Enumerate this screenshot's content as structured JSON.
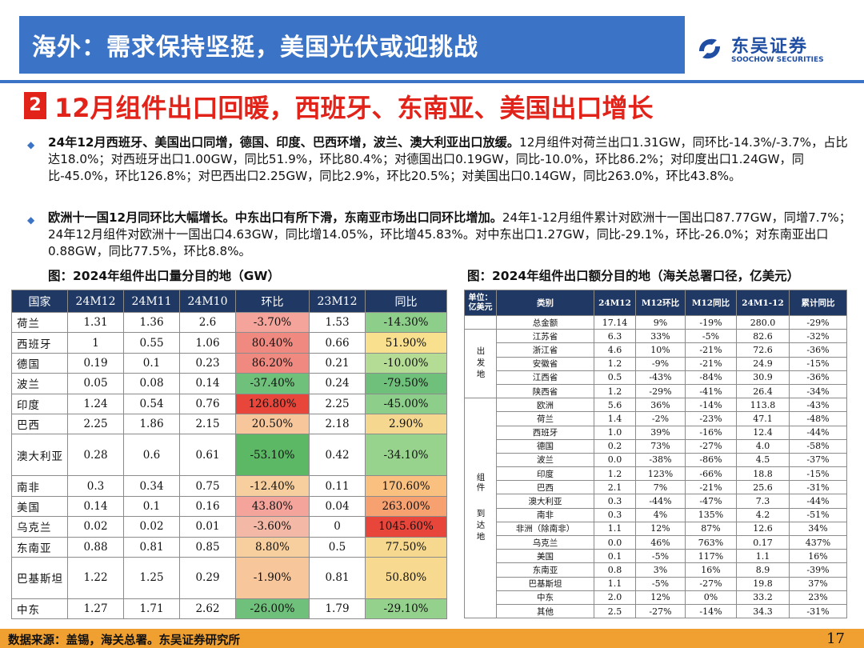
{
  "header": {
    "title": "海外：需求保持坚挺，美国光伏或迎挑战",
    "logo_cn": "东吴证券",
    "logo_en": "SOOCHOW SECURITIES"
  },
  "section": {
    "number": "2",
    "title": "12月组件出口回暖，西班牙、东南亚、美国出口增长"
  },
  "bullets": [
    {
      "bold": "24年12月西班牙、美国出口同增，德国、印度、巴西环增，波兰、澳大利亚出口放缓。",
      "text": "12月组件对荷兰出口1.31GW，同环比-14.3%/-3.7%，占比达18.0%；对西班牙出口1.00GW，同比51.9%，环比80.4%；对德国出口0.19GW，同比-10.0%，环比86.2%；对印度出口1.24GW，同比-45.0%，环比126.8%；对巴西出口2.25GW，同比2.9%，环比20.5%；对美国出口0.14GW，同比263.0%，环比43.8%。"
    },
    {
      "bold": "欧洲十一国12月同环比大幅增长。中东出口有所下滑，东南亚市场出口同环比增加。",
      "text": "24年1-12月组件累计对欧洲十一国出口87.77GW，同增7.7%；24年12月组件对欧洲十一国出口4.63GW，同比增14.05%，环比增45.83%。对中东出口1.27GW，同比-29.1%，环比-26.0%；对东南亚出口0.88GW，同比77.5%，环比8.8%。"
    }
  ],
  "left_caption": "图：2024年组件出口量分目的地（GW）",
  "right_caption": "图：2024年组件出口额分目的地（海关总署口径，亿美元）",
  "left_table": {
    "headers": [
      "国家",
      "24M12",
      "24M11",
      "24M10",
      "环比",
      "23M12",
      "同比"
    ],
    "rows": [
      [
        "荷兰",
        "1.31",
        "1.36",
        "2.6",
        "-3.70%",
        "1.53",
        "-14.30%"
      ],
      [
        "西班牙",
        "1",
        "0.55",
        "1.06",
        "80.40%",
        "0.66",
        "51.90%"
      ],
      [
        "德国",
        "0.19",
        "0.1",
        "0.23",
        "86.20%",
        "0.21",
        "-10.00%"
      ],
      [
        "波兰",
        "0.05",
        "0.08",
        "0.14",
        "-37.40%",
        "0.24",
        "-79.50%"
      ],
      [
        "印度",
        "1.24",
        "0.54",
        "0.76",
        "126.80%",
        "2.25",
        "-45.00%"
      ],
      [
        "巴西",
        "2.25",
        "1.86",
        "2.15",
        "20.50%",
        "2.18",
        "2.90%"
      ],
      [
        "澳大利亚",
        "0.28",
        "0.6",
        "0.61",
        "-53.10%",
        "0.42",
        "-34.10%"
      ],
      [
        "南非",
        "0.3",
        "0.34",
        "0.75",
        "-12.40%",
        "0.11",
        "170.60%"
      ],
      [
        "美国",
        "0.14",
        "0.1",
        "0.16",
        "43.80%",
        "0.04",
        "263.00%"
      ],
      [
        "乌克兰",
        "0.02",
        "0.02",
        "0.01",
        "-3.60%",
        "0",
        "1045.60%"
      ],
      [
        "东南亚",
        "0.88",
        "0.81",
        "0.85",
        "8.80%",
        "0.5",
        "77.50%"
      ],
      [
        "巴基斯坦",
        "1.22",
        "1.25",
        "0.29",
        "-1.90%",
        "0.81",
        "50.80%"
      ],
      [
        "中东",
        "1.27",
        "1.71",
        "2.62",
        "-26.00%",
        "1.79",
        "-29.10%"
      ]
    ],
    "hb_colors": [
      "#f4a49a",
      "#f08a80",
      "#f08a80",
      "#6fc07a",
      "#e8463a",
      "#f7c69a",
      "#5cb865",
      "#f7cf9e",
      "#f4a49a",
      "#f4b9a6",
      "#f7cf9e",
      "#f7c69a",
      "#6fc07a"
    ],
    "yoy_colors": [
      "#8cce8a",
      "#f9e08f",
      "#b4dc95",
      "#6fc07a",
      "#8cce8a",
      "#f5d78f",
      "#98d38e",
      "#f9c080",
      "#f8a170",
      "#e8463a",
      "#f6d98e",
      "#f7da8f",
      "#94d18c"
    ]
  },
  "right_table": {
    "headers": [
      "单位：亿美元",
      "类别",
      "24M12",
      "M12环比",
      "M12同比",
      "24M1-12",
      "累计同比"
    ],
    "group_labels": [
      "出发地",
      "组件",
      "到达地"
    ],
    "rows": [
      [
        "总金额",
        "17.14",
        "9%",
        "-19%",
        "280.0",
        "-29%"
      ],
      [
        "江苏省",
        "6.3",
        "33%",
        "-5%",
        "82.6",
        "-32%"
      ],
      [
        "浙江省",
        "4.6",
        "10%",
        "-21%",
        "72.6",
        "-36%"
      ],
      [
        "安徽省",
        "1.2",
        "-9%",
        "-21%",
        "24.9",
        "-15%"
      ],
      [
        "江西省",
        "0.5",
        "-43%",
        "-84%",
        "30.9",
        "-36%"
      ],
      [
        "陕西省",
        "1.2",
        "-29%",
        "-41%",
        "26.4",
        "-34%"
      ],
      [
        "欧洲",
        "5.6",
        "36%",
        "-14%",
        "113.8",
        "-43%"
      ],
      [
        "荷兰",
        "1.4",
        "-2%",
        "-23%",
        "47.1",
        "-48%"
      ],
      [
        "西班牙",
        "1.0",
        "39%",
        "-16%",
        "12.4",
        "-44%"
      ],
      [
        "德国",
        "0.2",
        "73%",
        "-27%",
        "4.0",
        "-58%"
      ],
      [
        "波兰",
        "0.0",
        "-38%",
        "-86%",
        "4.5",
        "-37%"
      ],
      [
        "印度",
        "1.2",
        "123%",
        "-66%",
        "18.8",
        "-15%"
      ],
      [
        "巴西",
        "2.1",
        "7%",
        "-21%",
        "25.6",
        "-31%"
      ],
      [
        "澳大利亚",
        "0.3",
        "-44%",
        "-47%",
        "7.3",
        "-44%"
      ],
      [
        "南非",
        "0.3",
        "4%",
        "135%",
        "4.2",
        "-51%"
      ],
      [
        "非洲（除南非）",
        "1.1",
        "12%",
        "87%",
        "12.6",
        "34%"
      ],
      [
        "乌克兰",
        "0.0",
        "46%",
        "763%",
        "0.17",
        "437%"
      ],
      [
        "美国",
        "0.1",
        "-5%",
        "117%",
        "1.1",
        "16%"
      ],
      [
        "东南亚",
        "0.8",
        "3%",
        "16%",
        "8.9",
        "-39%"
      ],
      [
        "巴基斯坦",
        "1.1",
        "-5%",
        "-27%",
        "19.8",
        "37%"
      ],
      [
        "中东",
        "2.0",
        "12%",
        "0%",
        "33.2",
        "23%"
      ],
      [
        "其他",
        "2.5",
        "-27%",
        "-14%",
        "34.3",
        "-31%"
      ]
    ]
  },
  "footer": {
    "source": "数据来源：盖锡，海关总署。东吴证券研究所",
    "page": "17"
  }
}
